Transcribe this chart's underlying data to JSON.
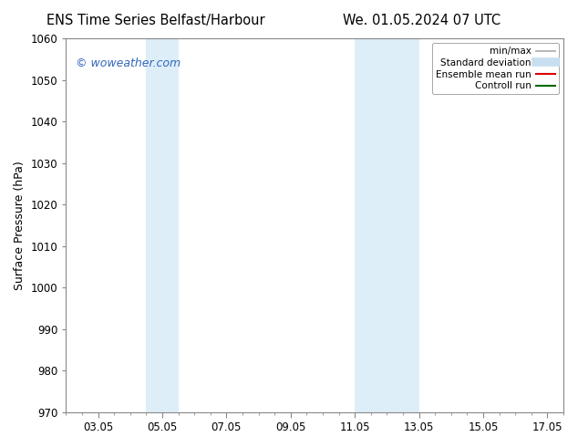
{
  "title_left": "ENS Time Series Belfast/Harbour",
  "title_right": "We. 01.05.2024 07 UTC",
  "ylabel": "Surface Pressure (hPa)",
  "ylim": [
    970,
    1060
  ],
  "yticks": [
    970,
    980,
    990,
    1000,
    1010,
    1020,
    1030,
    1040,
    1050,
    1060
  ],
  "xlim_start": 2.0,
  "xlim_end": 17.5,
  "xtick_labels": [
    "03.05",
    "05.05",
    "07.05",
    "09.05",
    "11.05",
    "13.05",
    "15.05",
    "17.05"
  ],
  "xtick_positions": [
    3,
    5,
    7,
    9,
    11,
    13,
    15,
    17
  ],
  "shaded_bands": [
    {
      "x_start": 4.5,
      "x_end": 5.5,
      "color": "#ddeef8"
    },
    {
      "x_start": 11.0,
      "x_end": 13.0,
      "color": "#ddeef8"
    }
  ],
  "watermark_text": "© woweather.com",
  "watermark_color": "#3366bb",
  "legend_entries": [
    {
      "label": "min/max",
      "color": "#aaaaaa",
      "lw": 1.2
    },
    {
      "label": "Standard deviation",
      "color": "#c8dff0",
      "lw": 7
    },
    {
      "label": "Ensemble mean run",
      "color": "#dd0000",
      "lw": 1.5
    },
    {
      "label": "Controll run",
      "color": "#006600",
      "lw": 1.5
    }
  ],
  "background_color": "#ffffff",
  "title_fontsize": 10.5,
  "axis_fontsize": 9,
  "tick_fontsize": 8.5
}
